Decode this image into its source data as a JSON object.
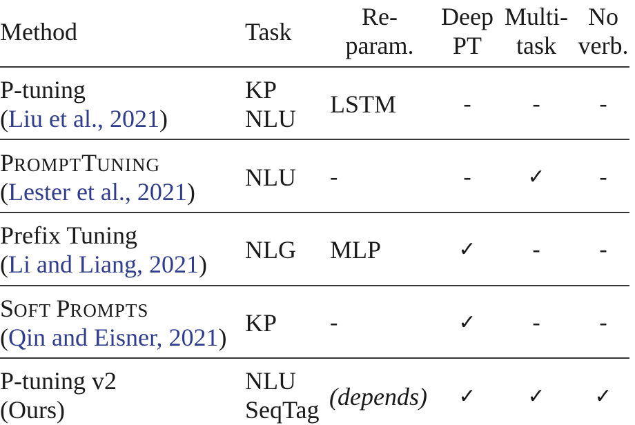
{
  "headers": {
    "method": "Method",
    "task": "Task",
    "reparam": [
      "Re-",
      "param."
    ],
    "deep_pt": [
      "Deep",
      "PT"
    ],
    "multitask": [
      "Multi-",
      "task"
    ],
    "no_verb": [
      "No",
      "verb."
    ]
  },
  "rows": [
    {
      "method": "P-tuning",
      "citation": "Liu et al., 2021",
      "task": [
        "KP",
        "NLU"
      ],
      "reparam": "LSTM",
      "deep_pt": "-",
      "multitask": "-",
      "no_verb": "-"
    },
    {
      "method_sc": [
        "P",
        "ROMPT",
        "T",
        "UNING"
      ],
      "citation": "Lester et al., 2021",
      "task": [
        "NLU"
      ],
      "reparam": "-",
      "deep_pt": "-",
      "multitask": "✓",
      "no_verb": "-"
    },
    {
      "method": "Prefix Tuning",
      "citation": "Li and Liang, 2021",
      "task": [
        "NLG"
      ],
      "reparam": "MLP",
      "deep_pt": "✓",
      "multitask": "-",
      "no_verb": "-"
    },
    {
      "method_sc": [
        "S",
        "OFT ",
        "P",
        "ROMPTS"
      ],
      "citation": "Qin and Eisner, 2021",
      "task": [
        "KP"
      ],
      "reparam": "-",
      "deep_pt": "✓",
      "multitask": "-",
      "no_verb": "-"
    },
    {
      "method": "P-tuning v2",
      "citation": "Ours",
      "task": [
        "NLU",
        "SeqTag"
      ],
      "reparam": "(depends)",
      "deep_pt": "✓",
      "multitask": "✓",
      "no_verb": "✓"
    }
  ]
}
